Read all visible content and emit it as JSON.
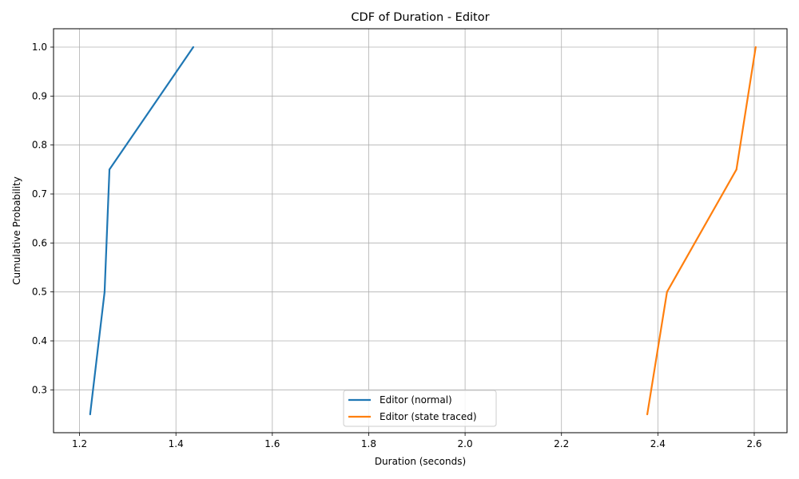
{
  "chart_data": {
    "type": "line",
    "title": "CDF of Duration - Editor",
    "xlabel": "Duration (seconds)",
    "ylabel": "Cumulative Probability",
    "xlim": [
      1.146,
      2.668
    ],
    "ylim": [
      0.2125,
      1.0375
    ],
    "xticks": [
      {
        "value": 1.2,
        "label": "1.2"
      },
      {
        "value": 1.4,
        "label": "1.4"
      },
      {
        "value": 1.6,
        "label": "1.6"
      },
      {
        "value": 1.8,
        "label": "1.8"
      },
      {
        "value": 2.0,
        "label": "2.0"
      },
      {
        "value": 2.2,
        "label": "2.2"
      },
      {
        "value": 2.4,
        "label": "2.4"
      },
      {
        "value": 2.6,
        "label": "2.6"
      }
    ],
    "yticks": [
      {
        "value": 0.3,
        "label": "0.3"
      },
      {
        "value": 0.4,
        "label": "0.4"
      },
      {
        "value": 0.5,
        "label": "0.5"
      },
      {
        "value": 0.6,
        "label": "0.6"
      },
      {
        "value": 0.7,
        "label": "0.7"
      },
      {
        "value": 0.8,
        "label": "0.8"
      },
      {
        "value": 0.9,
        "label": "0.9"
      },
      {
        "value": 1.0,
        "label": "1.0"
      }
    ],
    "grid": true,
    "legend_position": "lower center",
    "series": [
      {
        "name": "Editor (normal)",
        "color": "#1f77b4",
        "x": [
          1.222,
          1.252,
          1.262,
          1.436
        ],
        "y": [
          0.25,
          0.5,
          0.75,
          1.0
        ]
      },
      {
        "name": "Editor (state traced)",
        "color": "#ff7f0e",
        "x": [
          2.378,
          2.419,
          2.563,
          2.603
        ],
        "y": [
          0.25,
          0.5,
          0.75,
          1.0
        ]
      }
    ]
  }
}
